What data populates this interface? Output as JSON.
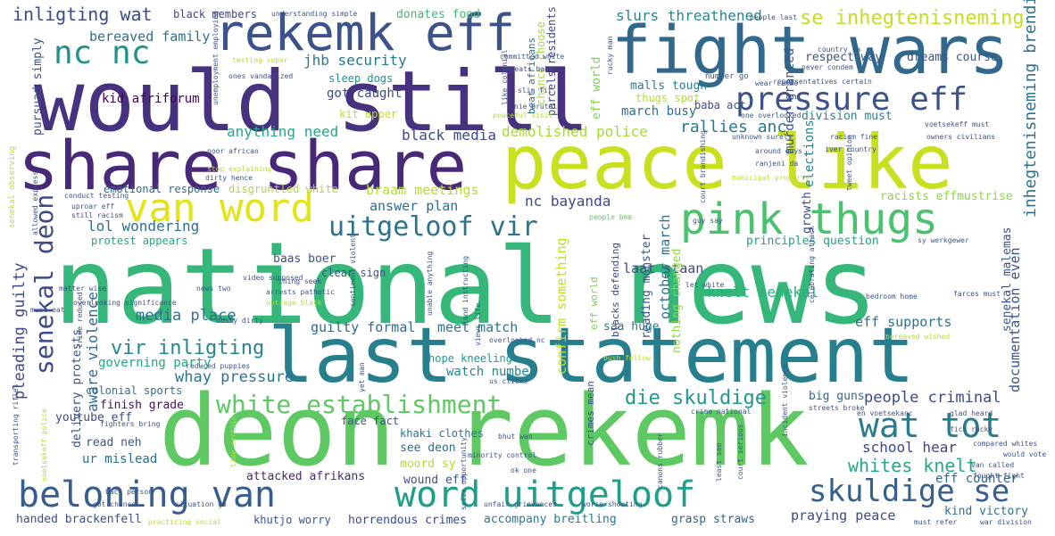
{
  "words": [
    {
      "text": "national news",
      "color": "#35b779"
    },
    {
      "text": "deon rekemk",
      "color": "#5ec962"
    },
    {
      "text": "would still",
      "color": "#46327e"
    },
    {
      "text": "last statement",
      "color": "#277f8e"
    },
    {
      "text": "peace like",
      "color": "#c8e020"
    },
    {
      "text": "share share",
      "color": "#482878"
    },
    {
      "text": "fight wars",
      "color": "#31688e"
    },
    {
      "text": "rekemk eff",
      "color": "#3b528b"
    },
    {
      "text": "pink thugs",
      "color": "#4ac16d"
    },
    {
      "text": "pressure eff",
      "color": "#3b528b"
    },
    {
      "text": "van word",
      "color": "#e2e418"
    },
    {
      "text": "beloning van",
      "color": "#365d8d"
    },
    {
      "text": "word uitgeloof",
      "color": "#1f9e89"
    },
    {
      "text": "white establishment",
      "color": "#5ec962"
    },
    {
      "text": "wat tot",
      "color": "#287c8e"
    },
    {
      "text": "skuldige se",
      "color": "#355f8d"
    },
    {
      "text": "uitgeloof vir",
      "color": "#2c728e"
    },
    {
      "text": "senekal deon",
      "color": "#3e4a89"
    },
    {
      "text": "nc nc",
      "color": "#21918c"
    },
    {
      "text": "inligting wat",
      "color": "#3e4989"
    },
    {
      "text": "bereaved family",
      "color": "#2e6f8e"
    },
    {
      "text": "black members",
      "color": "#3f4889"
    },
    {
      "text": "donates food",
      "color": "#3bbb75"
    },
    {
      "text": "slurs threathened",
      "color": "#24878e"
    },
    {
      "text": "se inhegtenisneming",
      "color": "#c2df23"
    },
    {
      "text": "respect way",
      "color": "#3a548c"
    },
    {
      "text": "dreams course",
      "color": "#39558c"
    },
    {
      "text": "jhb security",
      "color": "#29798e"
    },
    {
      "text": "eff world",
      "color": "#7ad151"
    },
    {
      "text": "malls tough",
      "color": "#287d8e"
    },
    {
      "text": "kid afriforum",
      "color": "#440154"
    },
    {
      "text": "anything need",
      "color": "#22a884"
    },
    {
      "text": "demolished police",
      "color": "#a5db36"
    },
    {
      "text": "rallies anc",
      "color": "#2a788e"
    },
    {
      "text": "black media",
      "color": "#3e4989"
    },
    {
      "text": "march busy",
      "color": "#2c718e"
    },
    {
      "text": "division must",
      "color": "#25838e"
    },
    {
      "text": "inhegtenisneming brendin",
      "color": "#2d708e"
    },
    {
      "text": "emotional response",
      "color": "#31688e"
    },
    {
      "text": "disgruntled white",
      "color": "#addc30"
    },
    {
      "text": "braam meetings",
      "color": "#b5de2b"
    },
    {
      "text": "answer plan",
      "color": "#2f6b8e"
    },
    {
      "text": "nc bayanda",
      "color": "#3f4788"
    },
    {
      "text": "lol wondering",
      "color": "#2d708e"
    },
    {
      "text": "protest appears",
      "color": "#22a884"
    },
    {
      "text": "baas boer",
      "color": "#3b528b"
    },
    {
      "text": "principles question",
      "color": "#1fa187"
    },
    {
      "text": "racists effmustrise",
      "color": "#8ed645"
    },
    {
      "text": "media place",
      "color": "#2c728e"
    },
    {
      "text": "guilty formal",
      "color": "#31688e"
    },
    {
      "text": "meet match",
      "color": "#2a768e"
    },
    {
      "text": "vir inligting",
      "color": "#25858e"
    },
    {
      "text": "whay pressure",
      "color": "#2b748e"
    },
    {
      "text": "governing party",
      "color": "#22a884"
    },
    {
      "text": "die skuldige",
      "color": "#1f9a8a"
    },
    {
      "text": "people criminal",
      "color": "#3f4889"
    },
    {
      "text": "knelt senekal",
      "color": "#28ae80"
    },
    {
      "text": "eff supports",
      "color": "#2c728e"
    },
    {
      "text": "school hear",
      "color": "#404588"
    },
    {
      "text": "whites knelt",
      "color": "#22a884"
    },
    {
      "text": "eff counter",
      "color": "#31688e"
    },
    {
      "text": "finish grade",
      "color": "#471063"
    },
    {
      "text": "colonial sports",
      "color": "#2d708e"
    },
    {
      "text": "hope kneeling",
      "color": "#1f968b"
    },
    {
      "text": "watch number",
      "color": "#25858e"
    },
    {
      "text": "big guns",
      "color": "#31688e"
    },
    {
      "text": "youtube eff",
      "color": "#3e4a89"
    },
    {
      "text": "read neh",
      "color": "#3a548c"
    },
    {
      "text": "ur mislead",
      "color": "#2d708e"
    },
    {
      "text": "attacked afrikans",
      "color": "#482677"
    },
    {
      "text": "wound eff",
      "color": "#3b528b"
    },
    {
      "text": "see deon",
      "color": "#2e6e8e"
    },
    {
      "text": "moord sy",
      "color": "#b5de2b"
    },
    {
      "text": "khaki clothes",
      "color": "#2a788e"
    },
    {
      "text": "face fact",
      "color": "#3b528b"
    },
    {
      "text": "handed brackenfell",
      "color": "#3b528b"
    },
    {
      "text": "khutjo worry",
      "color": "#3b528b"
    },
    {
      "text": "horrendous crimes",
      "color": "#3e4989"
    },
    {
      "text": "accompany breitling",
      "color": "#2a788e"
    },
    {
      "text": "grasp straws",
      "color": "#32658e"
    },
    {
      "text": "praying peace",
      "color": "#3e4989"
    },
    {
      "text": "kind victory",
      "color": "#2c718e"
    },
    {
      "text": "saa huge",
      "color": "#2a788e"
    },
    {
      "text": "pleading guilty",
      "color": "#3f4889"
    },
    {
      "text": "aware violence",
      "color": "#31688e"
    },
    {
      "text": "delivery protests",
      "color": "#3b528b"
    },
    {
      "text": "pursuad simply",
      "color": "#3b528b"
    },
    {
      "text": "got caught",
      "color": "#3e4a89"
    },
    {
      "text": "sleep dogs",
      "color": "#21918c"
    },
    {
      "text": "thugs spot",
      "color": "#b5de2b"
    },
    {
      "text": "baba act",
      "color": "#3e4989"
    },
    {
      "text": "kit upper",
      "color": "#bddf26"
    },
    {
      "text": "clear sign",
      "color": "#3b528b"
    },
    {
      "text": "laat staan",
      "color": "#3f4889"
    },
    {
      "text": "october march",
      "color": "#2c728e"
    },
    {
      "text": "reading monster",
      "color": "#3b528b"
    },
    {
      "text": "nothing changed",
      "color": "#93d741"
    },
    {
      "text": "confirm something",
      "color": "#c2df23"
    },
    {
      "text": "murder granted",
      "color": "#3b528b"
    },
    {
      "text": "elections",
      "color": "#26828e"
    },
    {
      "text": "growth",
      "color": "#3e4a89"
    },
    {
      "text": "senekal malemas",
      "color": "#3a538b"
    },
    {
      "text": "documentation even",
      "color": "#3b528b"
    },
    {
      "text": "crimes mean",
      "color": "#3b528b"
    },
    {
      "text": "blacks defending",
      "color": "#3e4989"
    },
    {
      "text": "eff world",
      "color": "#7ad151"
    },
    {
      "text": "beat africans",
      "color": "#2d708e"
    },
    {
      "text": "parcels residents",
      "color": "#3e4a89"
    },
    {
      "text": "chance choose",
      "color": "#a5db36"
    },
    {
      "text": "understanding simple",
      "color": "#3b528b"
    },
    {
      "text": "committed white",
      "color": "#3b528b"
    },
    {
      "text": "number go",
      "color": "#3b528b"
    },
    {
      "text": "people last",
      "color": "#3b528b"
    },
    {
      "text": "country sa",
      "color": "#3b528b"
    },
    {
      "text": "representatives certain",
      "color": "#3b528b"
    },
    {
      "text": "never condem",
      "color": "#3b528b"
    },
    {
      "text": "one overlooked",
      "color": "#3b528b"
    },
    {
      "text": "unknown surely",
      "color": "#3b528b"
    },
    {
      "text": "racism fine",
      "color": "#3b528b"
    },
    {
      "text": "around guys",
      "color": "#3b528b"
    },
    {
      "text": "ranjeni da",
      "color": "#3b528b"
    },
    {
      "text": "municipal property",
      "color": "#bddf26"
    },
    {
      "text": "voetsekeff must",
      "color": "#3b528b"
    },
    {
      "text": "owners civilians",
      "color": "#3b528b"
    },
    {
      "text": "iver country",
      "color": "#3b528b"
    },
    {
      "text": "tweet opinion",
      "color": "#3b528b"
    },
    {
      "text": "court brandishing",
      "color": "#3b528b"
    },
    {
      "text": "people bme",
      "color": "#5ec962"
    },
    {
      "text": "guy say",
      "color": "#3b528b"
    },
    {
      "text": "sy werkgewer",
      "color": "#3b528b"
    },
    {
      "text": "let white",
      "color": "#3b528b"
    },
    {
      "text": "farces must",
      "color": "#3b528b"
    },
    {
      "text": "bedroom home",
      "color": "#3b528b"
    },
    {
      "text": "celebrating attack",
      "color": "#3b528b"
    },
    {
      "text": "en voetsekanc",
      "color": "#3b528b"
    },
    {
      "text": "glad heard",
      "color": "#3b528b"
    },
    {
      "text": "fick rucky",
      "color": "#3b528b"
    },
    {
      "text": "compared whites",
      "color": "#3b528b"
    },
    {
      "text": "would vote",
      "color": "#3b528b"
    },
    {
      "text": "van called",
      "color": "#3b528b"
    },
    {
      "text": "must refer",
      "color": "#3b528b"
    },
    {
      "text": "war division",
      "color": "#3b528b"
    },
    {
      "text": "streets broke",
      "color": "#3b528b"
    },
    {
      "text": "incident violence",
      "color": "#3b528b"
    },
    {
      "text": "crime national",
      "color": "#3b528b"
    },
    {
      "text": "court serious",
      "color": "#3b528b"
    },
    {
      "text": "least see",
      "color": "#3b528b"
    },
    {
      "text": "canons rubber",
      "color": "#3b528b"
    },
    {
      "text": "bush follow",
      "color": "#c2df23"
    },
    {
      "text": "overlooked nc",
      "color": "#3b528b"
    },
    {
      "text": "us clicks",
      "color": "#3b528b"
    },
    {
      "text": "bhut wan",
      "color": "#3b528b"
    },
    {
      "text": "ok one",
      "color": "#3b528b"
    },
    {
      "text": "minority control",
      "color": "#3b528b"
    },
    {
      "text": "unfair grievances",
      "color": "#3b528b"
    },
    {
      "text": "worse shooting",
      "color": "#3b528b"
    },
    {
      "text": "seize opportunity",
      "color": "#3b528b"
    },
    {
      "text": "time certain",
      "color": "#b5de2b"
    },
    {
      "text": "yet man",
      "color": "#3b528b"
    },
    {
      "text": "views life",
      "color": "#3b528b"
    },
    {
      "text": "land instructing",
      "color": "#3b528b"
    },
    {
      "text": "unable anything",
      "color": "#3b528b"
    },
    {
      "text": "thing seek",
      "color": "#3b528b"
    },
    {
      "text": "arrests pathetic",
      "color": "#3b528b"
    },
    {
      "text": "outrage black",
      "color": "#b5de2b"
    },
    {
      "text": "dusty dirty",
      "color": "#3b528b"
    },
    {
      "text": "reduced puppies",
      "color": "#3b528b"
    },
    {
      "text": "sentiment violent",
      "color": "#3b528b"
    },
    {
      "text": "situation go",
      "color": "#3b528b"
    },
    {
      "text": "practicing social",
      "color": "#b5de2b"
    },
    {
      "text": "got chance",
      "color": "#3b528b"
    },
    {
      "text": "back person",
      "color": "#3b528b"
    },
    {
      "text": "fighters bring",
      "color": "#3b528b"
    },
    {
      "text": "overlooking significance",
      "color": "#3b528b"
    },
    {
      "text": "matter wise",
      "color": "#3b528b"
    },
    {
      "text": "news two",
      "color": "#3b528b"
    },
    {
      "text": "video supposed",
      "color": "#3b528b"
    },
    {
      "text": "must eat",
      "color": "#3b528b"
    },
    {
      "text": "poor african",
      "color": "#3b528b"
    },
    {
      "text": "stop explaining",
      "color": "#b5de2b"
    },
    {
      "text": "dirty hence",
      "color": "#3b528b"
    },
    {
      "text": "conduct testing",
      "color": "#3b528b"
    },
    {
      "text": "uproar eff",
      "color": "#3b528b"
    },
    {
      "text": "still racism",
      "color": "#3b528b"
    },
    {
      "text": "allowed express",
      "color": "#3b528b"
    },
    {
      "text": "senekal observing",
      "color": "#b5de2b"
    },
    {
      "text": "transporting rifles",
      "color": "#3b528b"
    },
    {
      "text": "voetsekeff police",
      "color": "#b5de2b"
    },
    {
      "text": "slim fit",
      "color": "#3b528b"
    },
    {
      "text": "nie brutal",
      "color": "#3b528b"
    },
    {
      "text": "peaceful visit",
      "color": "#b5de2b"
    },
    {
      "text": "threats baba",
      "color": "#3b528b"
    },
    {
      "text": "testing super",
      "color": "#b5de2b"
    },
    {
      "text": "ones vandalized",
      "color": "#3b528b"
    },
    {
      "text": "unemployment employing",
      "color": "#3b528b"
    },
    {
      "text": "like colonial",
      "color": "#3b528b"
    },
    {
      "text": "rucky man",
      "color": "#3b528b"
    },
    {
      "text": "wear cammo",
      "color": "#3b528b"
    },
    {
      "text": "bereaved wished",
      "color": "#b5de2b"
    },
    {
      "text": "crime reduced",
      "color": "#3b528b"
    },
    {
      "text": "fought fight",
      "color": "#3b528b"
    }
  ]
}
